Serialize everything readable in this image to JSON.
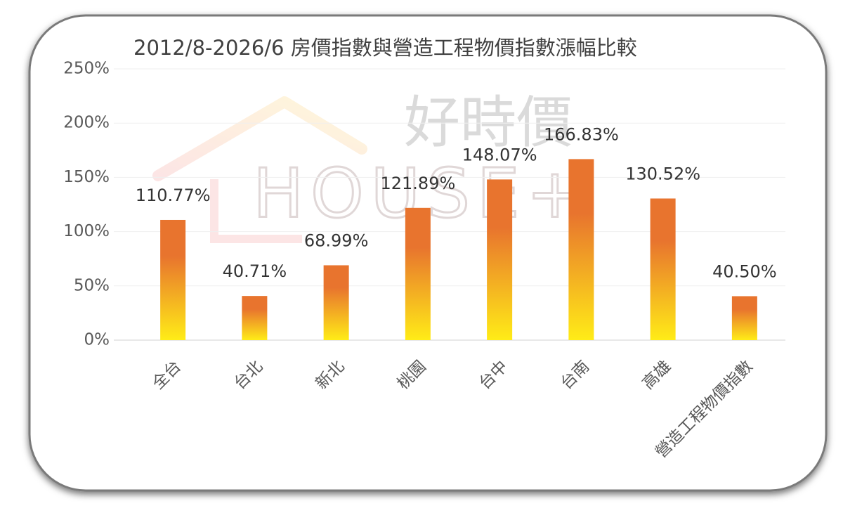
{
  "chart_data": {
    "type": "bar",
    "title": "2012/8-2026/6 房價指數與營造工程物價指數漲幅比較",
    "watermark": {
      "name": "好時價",
      "brand": "HOUSE+"
    },
    "categories": [
      "全台",
      "台北",
      "新北",
      "桃園",
      "台中",
      "台南",
      "高雄",
      "營造工程物價指數"
    ],
    "values": [
      110.77,
      40.71,
      68.99,
      121.89,
      148.07,
      166.83,
      130.52,
      40.5
    ],
    "value_labels": [
      "110.77%",
      "40.71%",
      "68.99%",
      "121.89%",
      "148.07%",
      "166.83%",
      "130.52%",
      "40.50%"
    ],
    "color": {
      "top": "#e8742e",
      "bottom": "#ffec17"
    },
    "ylim": [
      0,
      250
    ],
    "yticks": [
      {
        "value": 0,
        "label": "0%"
      },
      {
        "value": 50,
        "label": "50%"
      },
      {
        "value": 100,
        "label": "100%"
      },
      {
        "value": 150,
        "label": "150%"
      },
      {
        "value": 200,
        "label": "200%"
      },
      {
        "value": 250,
        "label": "250%"
      }
    ],
    "grid": true
  }
}
